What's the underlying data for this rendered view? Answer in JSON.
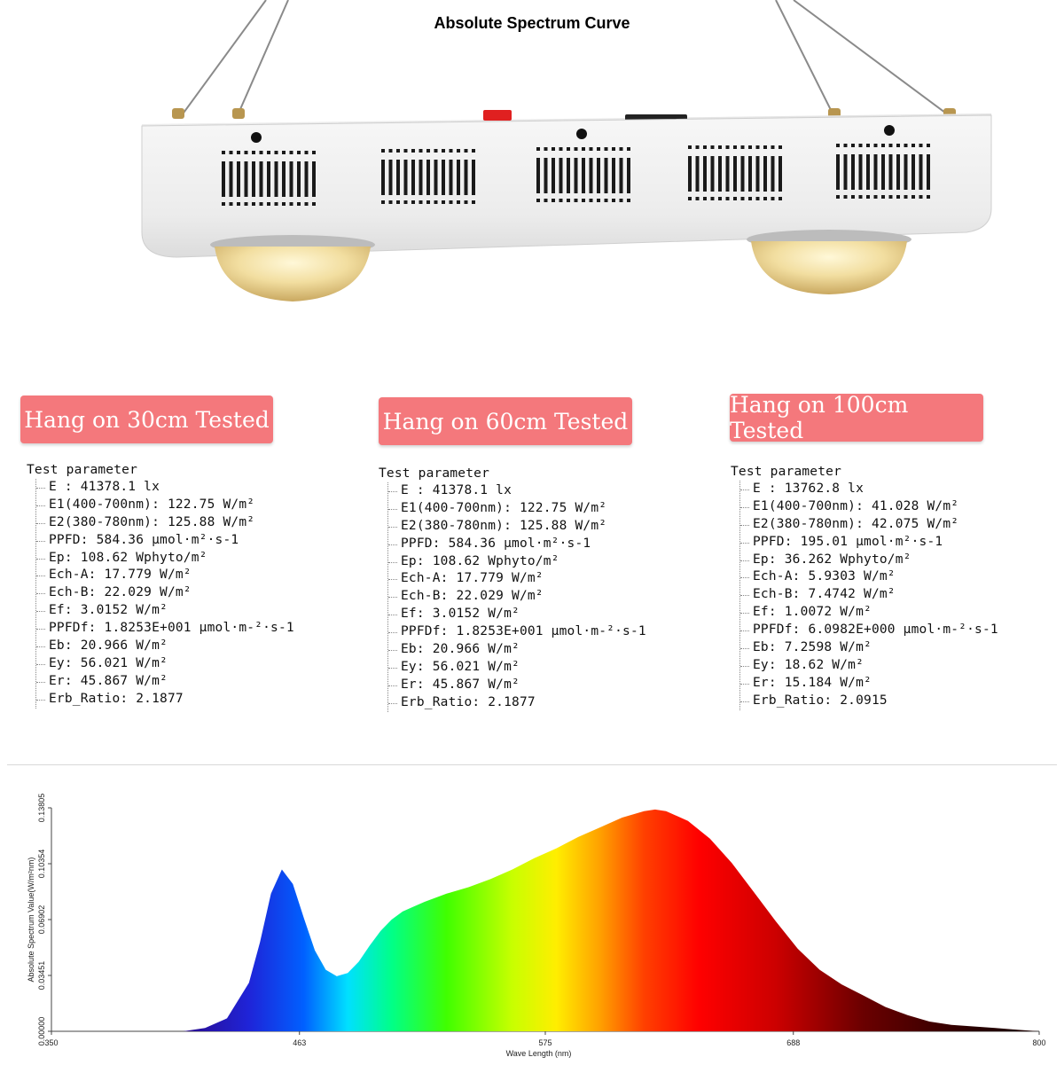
{
  "badges": [
    {
      "label": "Hang on 30cm Tested"
    },
    {
      "label": "Hang on 60cm Tested"
    },
    {
      "label": "Hang on 100cm Tested"
    }
  ],
  "tests": [
    {
      "title": "Test parameter",
      "rows": [
        "E   : 41378.1 lx",
        "E1(400-700nm):  122.75 W/m²",
        "E2(380-780nm):  125.88 W/m²",
        "PPFD:  584.36 μmol·m²·s-1",
        "Ep:  108.62 Wphyto/m²",
        "Ech-A:  17.779 W/m²",
        "Ech-B:  22.029 W/m²",
        "Ef:  3.0152 W/m²",
        "PPFDf:  1.8253E+001 μmol·m-²·s-1",
        "Eb:  20.966 W/m²",
        "Ey:  56.021 W/m²",
        "Er:  45.867 W/m²",
        "Erb_Ratio:  2.1877"
      ]
    },
    {
      "title": "Test parameter",
      "rows": [
        "E   : 41378.1 lx",
        "E1(400-700nm):  122.75 W/m²",
        "E2(380-780nm):  125.88 W/m²",
        "PPFD:  584.36 μmol·m²·s-1",
        "Ep:  108.62 Wphyto/m²",
        "Ech-A:  17.779 W/m²",
        "Ech-B:  22.029 W/m²",
        "Ef:  3.0152 W/m²",
        "PPFDf:  1.8253E+001 μmol·m-²·s-1",
        "Eb:  20.966 W/m²",
        "Ey:  56.021 W/m²",
        "Er:  45.867 W/m²",
        "Erb_Ratio:  2.1877"
      ]
    },
    {
      "title": "Test parameter",
      "rows": [
        "E   : 13762.8 lx",
        "E1(400-700nm):  41.028 W/m²",
        "E2(380-780nm):  42.075 W/m²",
        "PPFD:  195.01 μmol·m²·s-1",
        "Ep:  36.262 Wphyto/m²",
        "Ech-A:  5.9303 W/m²",
        "Ech-B:  7.4742 W/m²",
        "Ef:  1.0072 W/m²",
        "PPFDf:  6.0982E+000 μmol·m-²·s-1",
        "Eb:  7.2598 W/m²",
        "Ey:  18.62 W/m²",
        "Er:  15.184 W/m²",
        "Erb_Ratio:  2.0915"
      ]
    }
  ],
  "chart_data": {
    "type": "area",
    "title": "Absolute Spectrum Curve",
    "xlabel": "Wave Length (nm)",
    "ylabel": "Absolute Spectrum Value(W/m²nm)",
    "xlim": [
      350,
      800
    ],
    "ylim": [
      0,
      0.13805
    ],
    "xticks": [
      "350",
      "463",
      "575",
      "688",
      "800"
    ],
    "yticks": [
      "0.00000",
      "0.03451",
      "0.06902",
      "0.10354",
      "0.13805"
    ],
    "x": [
      410,
      420,
      430,
      440,
      445,
      450,
      455,
      460,
      465,
      470,
      475,
      480,
      485,
      490,
      495,
      500,
      505,
      510,
      515,
      520,
      530,
      540,
      550,
      560,
      570,
      580,
      590,
      600,
      610,
      620,
      625,
      630,
      640,
      650,
      660,
      670,
      680,
      690,
      700,
      710,
      720,
      730,
      740,
      750,
      760,
      770,
      780,
      790,
      800
    ],
    "values": [
      0.0,
      0.002,
      0.008,
      0.03,
      0.055,
      0.085,
      0.1,
      0.091,
      0.07,
      0.05,
      0.038,
      0.034,
      0.036,
      0.043,
      0.053,
      0.062,
      0.069,
      0.074,
      0.077,
      0.08,
      0.085,
      0.089,
      0.094,
      0.1,
      0.107,
      0.113,
      0.12,
      0.126,
      0.132,
      0.136,
      0.137,
      0.136,
      0.13,
      0.119,
      0.104,
      0.086,
      0.068,
      0.051,
      0.038,
      0.029,
      0.022,
      0.015,
      0.01,
      0.006,
      0.004,
      0.003,
      0.002,
      0.001,
      0.0
    ],
    "grid": false,
    "legend": "none"
  }
}
